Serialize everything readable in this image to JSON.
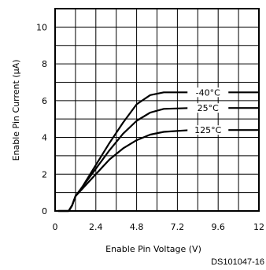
{
  "chart_data": {
    "type": "line",
    "xlabel": "Enable Pin Voltage (V)",
    "ylabel": "Enable Pin Current (μA)",
    "xlim": [
      0,
      12
    ],
    "ylim": [
      0,
      11
    ],
    "xticks": [
      "0",
      "2.4",
      "4.8",
      "7.2",
      "9.6",
      "12"
    ],
    "xtick_values": [
      0,
      2.4,
      4.8,
      7.2,
      9.6,
      12
    ],
    "yticks": [
      "0",
      "2",
      "4",
      "6",
      "8",
      "10"
    ],
    "ytick_values": [
      0,
      2,
      4,
      6,
      8,
      10
    ],
    "grid": true,
    "series": [
      {
        "name": "-40°C",
        "x": [
          0.2,
          0.8,
          1.0,
          1.2,
          1.6,
          2.4,
          3.2,
          4.0,
          4.8,
          5.6,
          6.4,
          8.0,
          10.0,
          12.0
        ],
        "y": [
          0,
          0,
          0.3,
          0.8,
          1.3,
          2.5,
          3.7,
          4.8,
          5.8,
          6.3,
          6.45,
          6.45,
          6.45,
          6.45
        ]
      },
      {
        "name": "25°C",
        "x": [
          0.2,
          0.8,
          1.0,
          1.2,
          1.6,
          2.4,
          3.2,
          4.0,
          4.8,
          5.6,
          6.4,
          8.0,
          10.0,
          12.0
        ],
        "y": [
          0,
          0,
          0.3,
          0.8,
          1.3,
          2.3,
          3.3,
          4.2,
          4.9,
          5.35,
          5.55,
          5.6,
          5.6,
          5.6
        ]
      },
      {
        "name": "125°C",
        "x": [
          0.2,
          0.8,
          1.0,
          1.2,
          1.6,
          2.4,
          3.2,
          4.0,
          4.8,
          5.6,
          6.4,
          8.0,
          10.0,
          12.0
        ],
        "y": [
          0,
          0,
          0.3,
          0.8,
          1.2,
          2.0,
          2.8,
          3.4,
          3.85,
          4.15,
          4.3,
          4.4,
          4.4,
          4.4
        ]
      }
    ],
    "figure_id": "DS101047-16"
  }
}
